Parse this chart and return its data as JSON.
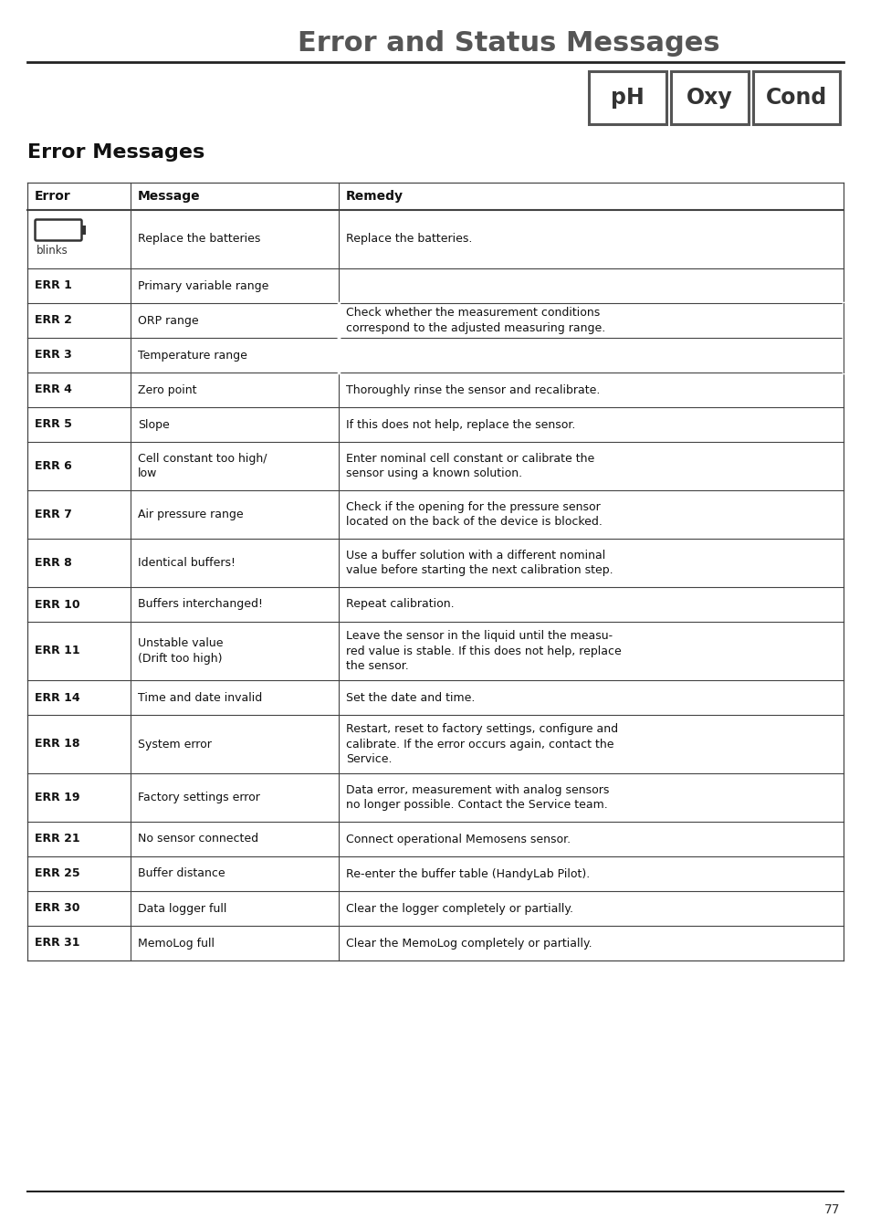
{
  "title": "Error and Status Messages",
  "subtitle": "Error Messages",
  "badges": [
    "pH",
    "Oxy",
    "Cond"
  ],
  "page_number": "77",
  "table_headers": [
    "Error",
    "Message",
    "Remedy"
  ],
  "bg_color": "#ffffff",
  "text_color": "#222222",
  "border_color": "#444444",
  "title_color": "#555555",
  "rows": [
    {
      "error": "BATT",
      "error_symbol": true,
      "message": "Replace the batteries",
      "remedy": "Replace the batteries.",
      "bold_error": false,
      "row_lines": 2.2
    },
    {
      "error": "ERR 1",
      "message": "Primary variable range",
      "remedy": "Check whether the measurement conditions\ncorrespond to the adjusted measuring range.",
      "bold_error": true,
      "row_lines": 1.0,
      "remedy_rowspan": 3
    },
    {
      "error": "ERR 2",
      "message": "ORP range",
      "remedy": "",
      "bold_error": true,
      "row_lines": 1.0,
      "remedy_rowspan_cont": true
    },
    {
      "error": "ERR 3",
      "message": "Temperature range",
      "remedy": "",
      "bold_error": true,
      "row_lines": 1.0,
      "remedy_rowspan_cont": true
    },
    {
      "error": "ERR 4",
      "message": "Zero point",
      "remedy": "Thoroughly rinse the sensor and recalibrate.",
      "bold_error": true,
      "row_lines": 1.0
    },
    {
      "error": "ERR 5",
      "message": "Slope",
      "remedy": "If this does not help, replace the sensor.",
      "bold_error": true,
      "row_lines": 1.0
    },
    {
      "error": "ERR 6",
      "message": "Cell constant too high/\nlow",
      "remedy": "Enter nominal cell constant or calibrate the\nsensor using a known solution.",
      "bold_error": true,
      "row_lines": 1.7
    },
    {
      "error": "ERR 7",
      "message": "Air pressure range",
      "remedy": "Check if the opening for the pressure sensor\nlocated on the back of the device is blocked.",
      "bold_error": true,
      "row_lines": 1.7
    },
    {
      "error": "ERR 8",
      "message": "Identical buffers!",
      "remedy": "Use a buffer solution with a different nominal\nvalue before starting the next calibration step.",
      "bold_error": true,
      "row_lines": 1.7
    },
    {
      "error": "ERR 10",
      "message": "Buffers interchanged!",
      "remedy": "Repeat calibration.",
      "bold_error": true,
      "row_lines": 1.0
    },
    {
      "error": "ERR 11",
      "message": "Unstable value\n(Drift too high)",
      "remedy": "Leave the sensor in the liquid until the measu-\nred value is stable. If this does not help, replace\nthe sensor.",
      "bold_error": true,
      "row_lines": 2.2
    },
    {
      "error": "ERR 14",
      "message": "Time and date invalid",
      "remedy": "Set the date and time.",
      "bold_error": true,
      "row_lines": 1.0
    },
    {
      "error": "ERR 18",
      "message": "System error",
      "remedy": "Restart, reset to factory settings, configure and\ncalibrate. If the error occurs again, contact the\nService.",
      "bold_error": true,
      "row_lines": 2.2
    },
    {
      "error": "ERR 19",
      "message": "Factory settings error",
      "remedy": "Data error, measurement with analog sensors\nno longer possible. Contact the Service team.",
      "bold_error": true,
      "row_lines": 1.7
    },
    {
      "error": "ERR 21",
      "message": "No sensor connected",
      "remedy": "Connect operational Memosens sensor.",
      "bold_error": true,
      "row_lines": 1.0
    },
    {
      "error": "ERR 25",
      "message": "Buffer distance",
      "remedy": "Re-enter the buffer table (HandyLab Pilot).",
      "bold_error": true,
      "row_lines": 1.0
    },
    {
      "error": "ERR 30",
      "message": "Data logger full",
      "remedy": "Clear the logger completely or partially.",
      "bold_error": true,
      "row_lines": 1.0
    },
    {
      "error": "ERR 31",
      "message": "MemoLog full",
      "remedy": "Clear the MemoLog completely or partially.",
      "bold_error": true,
      "row_lines": 1.0
    }
  ]
}
